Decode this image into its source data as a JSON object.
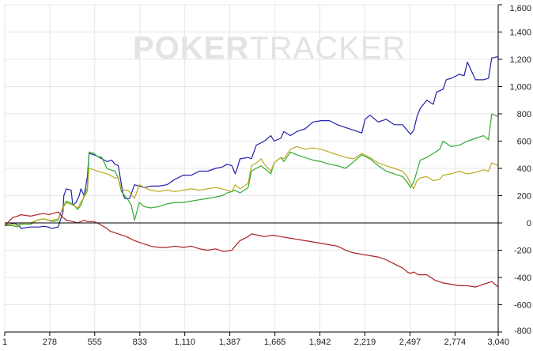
{
  "watermark": {
    "text_bold": "POKER",
    "text_light": "TRACKER"
  },
  "colors": {
    "background": "#ffffff",
    "grid": "#e6e6e6",
    "axis": "#000000",
    "watermark": "#e3e3e3"
  },
  "chart_data": {
    "type": "line",
    "title": "",
    "xlabel": "",
    "ylabel": "",
    "xlim": [
      1,
      3040
    ],
    "ylim": [
      -800,
      1600
    ],
    "x_ticks": [
      1,
      278,
      555,
      833,
      1110,
      1387,
      1665,
      1942,
      2219,
      2497,
      2774,
      3040
    ],
    "x_tick_labels": [
      "1",
      "278",
      "555",
      "833",
      "1,110",
      "1,387",
      "1,665",
      "1,942",
      "2,219",
      "2,497",
      "2,774",
      "3,040"
    ],
    "y_ticks": [
      -800,
      -600,
      -400,
      -200,
      0,
      200,
      400,
      600,
      800,
      1000,
      1200,
      1400,
      1600
    ],
    "y_tick_labels": [
      "-800",
      "-600",
      "-400",
      "-200",
      "0",
      "200",
      "400",
      "600",
      "800",
      "1,000",
      "1,200",
      "1,400",
      "1,600"
    ],
    "y_axis_side": "right",
    "grid": true,
    "legend": "none",
    "series": [
      {
        "color": "#2222aa",
        "x": [
          1,
          60,
          90,
          100,
          160,
          210,
          240,
          270,
          290,
          330,
          360,
          365,
          380,
          410,
          420,
          440,
          460,
          470,
          490,
          510,
          520,
          550,
          570,
          600,
          630,
          660,
          680,
          700,
          730,
          740,
          770,
          800,
          830,
          860,
          900,
          950,
          1000,
          1050,
          1100,
          1150,
          1200,
          1250,
          1300,
          1340,
          1370,
          1400,
          1420,
          1430,
          1450,
          1500,
          1520,
          1550,
          1600,
          1640,
          1660,
          1700,
          1720,
          1760,
          1800,
          1850,
          1900,
          1950,
          2000,
          2050,
          2100,
          2150,
          2200,
          2220,
          2250,
          2300,
          2350,
          2400,
          2450,
          2500,
          2520,
          2540,
          2560,
          2600,
          2640,
          2660,
          2700,
          2720,
          2750,
          2800,
          2830,
          2850,
          2900,
          2950,
          2980,
          3000,
          3040
        ],
        "y": [
          -20,
          0,
          -20,
          -40,
          -30,
          -30,
          -25,
          -30,
          -40,
          -30,
          80,
          200,
          250,
          240,
          130,
          150,
          200,
          250,
          200,
          340,
          510,
          500,
          490,
          470,
          450,
          460,
          430,
          420,
          210,
          180,
          180,
          280,
          270,
          260,
          270,
          270,
          280,
          320,
          350,
          350,
          380,
          380,
          400,
          410,
          430,
          420,
          360,
          390,
          470,
          480,
          470,
          570,
          600,
          640,
          600,
          620,
          670,
          640,
          670,
          690,
          740,
          750,
          750,
          720,
          700,
          680,
          660,
          760,
          790,
          740,
          760,
          720,
          720,
          650,
          680,
          780,
          840,
          900,
          870,
          960,
          980,
          1050,
          1060,
          1090,
          1080,
          1180,
          1050,
          1050,
          1060,
          1210,
          1220
        ]
      },
      {
        "color": "#33aa33",
        "x": [
          1,
          50,
          80,
          100,
          160,
          200,
          240,
          270,
          300,
          330,
          360,
          380,
          420,
          450,
          470,
          490,
          510,
          520,
          550,
          570,
          600,
          630,
          650,
          680,
          700,
          720,
          740,
          760,
          780,
          800,
          830,
          860,
          900,
          950,
          1000,
          1050,
          1100,
          1150,
          1200,
          1250,
          1300,
          1340,
          1370,
          1400,
          1420,
          1450,
          1500,
          1520,
          1550,
          1580,
          1600,
          1640,
          1660,
          1700,
          1720,
          1760,
          1800,
          1850,
          1900,
          1950,
          2000,
          2050,
          2100,
          2150,
          2200,
          2250,
          2300,
          2350,
          2400,
          2450,
          2480,
          2500,
          2520,
          2540,
          2560,
          2600,
          2640,
          2680,
          2700,
          2750,
          2800,
          2850,
          2900,
          2950,
          2980,
          3000,
          3040
        ],
        "y": [
          -20,
          -20,
          -30,
          -10,
          -10,
          20,
          30,
          20,
          10,
          20,
          120,
          160,
          140,
          100,
          130,
          200,
          260,
          520,
          510,
          490,
          480,
          400,
          390,
          380,
          330,
          230,
          200,
          170,
          130,
          20,
          150,
          120,
          110,
          120,
          140,
          150,
          150,
          160,
          170,
          180,
          190,
          200,
          220,
          230,
          240,
          220,
          260,
          380,
          400,
          420,
          400,
          360,
          440,
          480,
          450,
          520,
          500,
          480,
          460,
          450,
          430,
          420,
          400,
          450,
          500,
          470,
          420,
          380,
          360,
          340,
          300,
          260,
          300,
          380,
          460,
          480,
          510,
          540,
          600,
          560,
          570,
          600,
          620,
          640,
          610,
          800,
          780
        ]
      },
      {
        "color": "#bbaa22",
        "x": [
          1,
          50,
          80,
          100,
          160,
          200,
          240,
          270,
          300,
          330,
          360,
          380,
          420,
          450,
          470,
          490,
          510,
          520,
          550,
          570,
          600,
          630,
          650,
          680,
          700,
          720,
          740,
          760,
          780,
          800,
          830,
          860,
          900,
          950,
          1000,
          1050,
          1100,
          1150,
          1200,
          1250,
          1300,
          1340,
          1370,
          1400,
          1420,
          1450,
          1500,
          1520,
          1550,
          1580,
          1600,
          1640,
          1660,
          1700,
          1720,
          1760,
          1800,
          1850,
          1900,
          1950,
          2000,
          2050,
          2100,
          2150,
          2200,
          2250,
          2300,
          2350,
          2400,
          2450,
          2480,
          2500,
          2520,
          2540,
          2560,
          2600,
          2640,
          2680,
          2700,
          2750,
          2800,
          2850,
          2900,
          2950,
          2980,
          3000,
          3040
        ],
        "y": [
          -10,
          -10,
          -20,
          0,
          0,
          20,
          30,
          20,
          20,
          30,
          110,
          150,
          130,
          110,
          150,
          190,
          230,
          400,
          390,
          380,
          370,
          360,
          350,
          330,
          330,
          250,
          240,
          240,
          210,
          180,
          280,
          260,
          240,
          230,
          240,
          230,
          240,
          250,
          240,
          250,
          260,
          250,
          240,
          230,
          280,
          250,
          290,
          420,
          440,
          470,
          430,
          380,
          440,
          480,
          470,
          540,
          560,
          540,
          550,
          540,
          520,
          500,
          480,
          470,
          510,
          480,
          440,
          420,
          400,
          380,
          340,
          290,
          250,
          310,
          330,
          340,
          310,
          320,
          350,
          360,
          380,
          360,
          370,
          390,
          380,
          440,
          420
        ]
      },
      {
        "color": "#aa2222",
        "x": [
          1,
          50,
          80,
          100,
          160,
          200,
          240,
          270,
          300,
          330,
          360,
          380,
          420,
          450,
          470,
          490,
          510,
          520,
          550,
          570,
          600,
          630,
          650,
          700,
          750,
          800,
          850,
          900,
          950,
          1000,
          1050,
          1100,
          1150,
          1200,
          1250,
          1300,
          1350,
          1400,
          1420,
          1450,
          1500,
          1520,
          1560,
          1600,
          1650,
          1700,
          1750,
          1800,
          1850,
          1900,
          1950,
          2000,
          2050,
          2100,
          2150,
          2200,
          2250,
          2300,
          2350,
          2400,
          2450,
          2480,
          2500,
          2520,
          2550,
          2600,
          2650,
          2700,
          2750,
          2800,
          2850,
          2900,
          2950,
          3000,
          3040
        ],
        "y": [
          -20,
          40,
          50,
          60,
          50,
          60,
          70,
          60,
          70,
          80,
          40,
          20,
          10,
          0,
          10,
          20,
          10,
          10,
          10,
          0,
          -20,
          -40,
          -60,
          -80,
          -100,
          -130,
          -150,
          -170,
          -180,
          -180,
          -170,
          -180,
          -170,
          -190,
          -200,
          -190,
          -210,
          -200,
          -170,
          -130,
          -100,
          -80,
          -90,
          -100,
          -90,
          -100,
          -110,
          -120,
          -130,
          -140,
          -150,
          -160,
          -170,
          -200,
          -220,
          -230,
          -240,
          -250,
          -270,
          -300,
          -330,
          -360,
          -370,
          -360,
          -380,
          -380,
          -420,
          -440,
          -450,
          -460,
          -460,
          -470,
          -450,
          -430,
          -470
        ]
      }
    ]
  }
}
